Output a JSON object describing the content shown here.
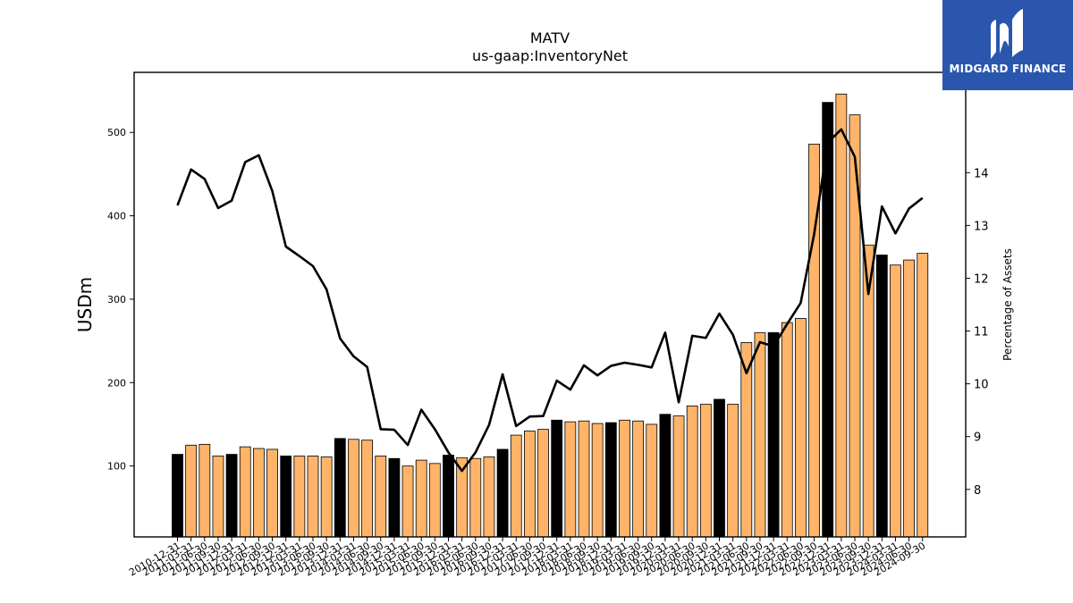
{
  "logo": {
    "text": "MIDGARD FINANCE"
  },
  "colors": {
    "bar_normal": "#ffb469",
    "bar_highlight": "#000000",
    "line": "#000000",
    "logo_bg": "#2a56ae"
  },
  "chart_data": {
    "type": "bar",
    "title": "MATV",
    "subtitle": "us-gaap:InventoryNet",
    "ylabel": "USDm",
    "y2label": "Percentage of Assets",
    "ylim": [
      15,
      572
    ],
    "y2lim": [
      7.1,
      15.9
    ],
    "yticks": [
      100,
      200,
      300,
      400,
      500
    ],
    "y2ticks": [
      8,
      9,
      10,
      11,
      12,
      13,
      14
    ],
    "categories": [
      "2010-12-31",
      "2011-03-31",
      "2011-06-30",
      "2011-09-30",
      "2011-12-31",
      "2012-03-31",
      "2012-06-30",
      "2012-09-30",
      "2012-12-31",
      "2013-03-31",
      "2013-06-30",
      "2013-09-30",
      "2013-12-31",
      "2014-03-31",
      "2014-06-30",
      "2014-09-30",
      "2014-12-31",
      "2015-03-31",
      "2015-06-30",
      "2015-09-30",
      "2015-12-31",
      "2016-03-31",
      "2016-06-30",
      "2016-09-30",
      "2016-12-31",
      "2017-03-31",
      "2017-06-30",
      "2017-09-30",
      "2017-12-31",
      "2018-03-31",
      "2018-06-30",
      "2018-09-30",
      "2018-12-31",
      "2019-03-31",
      "2019-06-30",
      "2019-09-30",
      "2019-12-31",
      "2020-03-31",
      "2020-06-30",
      "2020-09-30",
      "2020-12-31",
      "2021-03-31",
      "2021-06-30",
      "2021-09-30",
      "2021-12-31",
      "2022-03-31",
      "2022-06-30",
      "2022-09-30",
      "2022-12-31",
      "2023-03-31",
      "2023-06-30",
      "2023-09-30",
      "2023-12-31",
      "2024-03-31",
      "2024-06-30",
      "2024-09-30"
    ],
    "highlight_indices": [
      0,
      4,
      8,
      12,
      16,
      20,
      24,
      28,
      32,
      36,
      40,
      44,
      48,
      52
    ],
    "series": [
      {
        "name": "",
        "type": "bar",
        "axis": "left",
        "values": [
          114,
          125,
          126,
          112,
          114,
          123,
          121,
          120,
          112,
          112,
          112,
          111,
          133,
          132,
          131,
          112,
          109,
          100,
          107,
          103,
          113,
          110,
          109,
          111,
          120,
          137,
          142,
          144,
          155,
          153,
          154,
          151,
          152,
          155,
          154,
          150,
          162,
          160,
          172,
          174,
          180,
          174,
          248,
          260,
          260,
          272,
          277,
          486,
          536,
          546,
          521,
          365,
          353,
          341,
          347,
          355
        ]
      },
      {
        "name": "",
        "type": "line",
        "axis": "right",
        "values": [
          13.38,
          14.06,
          13.88,
          13.33,
          13.47,
          14.2,
          14.33,
          13.65,
          12.6,
          12.42,
          12.23,
          11.79,
          10.86,
          10.52,
          10.32,
          9.14,
          9.13,
          8.84,
          9.51,
          9.14,
          8.7,
          8.35,
          8.7,
          9.22,
          10.18,
          9.2,
          9.38,
          9.39,
          10.06,
          9.89,
          10.35,
          10.16,
          10.34,
          10.4,
          10.36,
          10.31,
          10.97,
          9.65,
          10.91,
          10.87,
          11.33,
          10.93,
          10.2,
          10.79,
          10.71,
          11.13,
          11.53,
          12.84,
          14.57,
          14.82,
          14.3,
          11.7,
          13.36,
          12.85,
          13.32,
          13.52
        ]
      }
    ],
    "grid": false,
    "legend": "none"
  }
}
